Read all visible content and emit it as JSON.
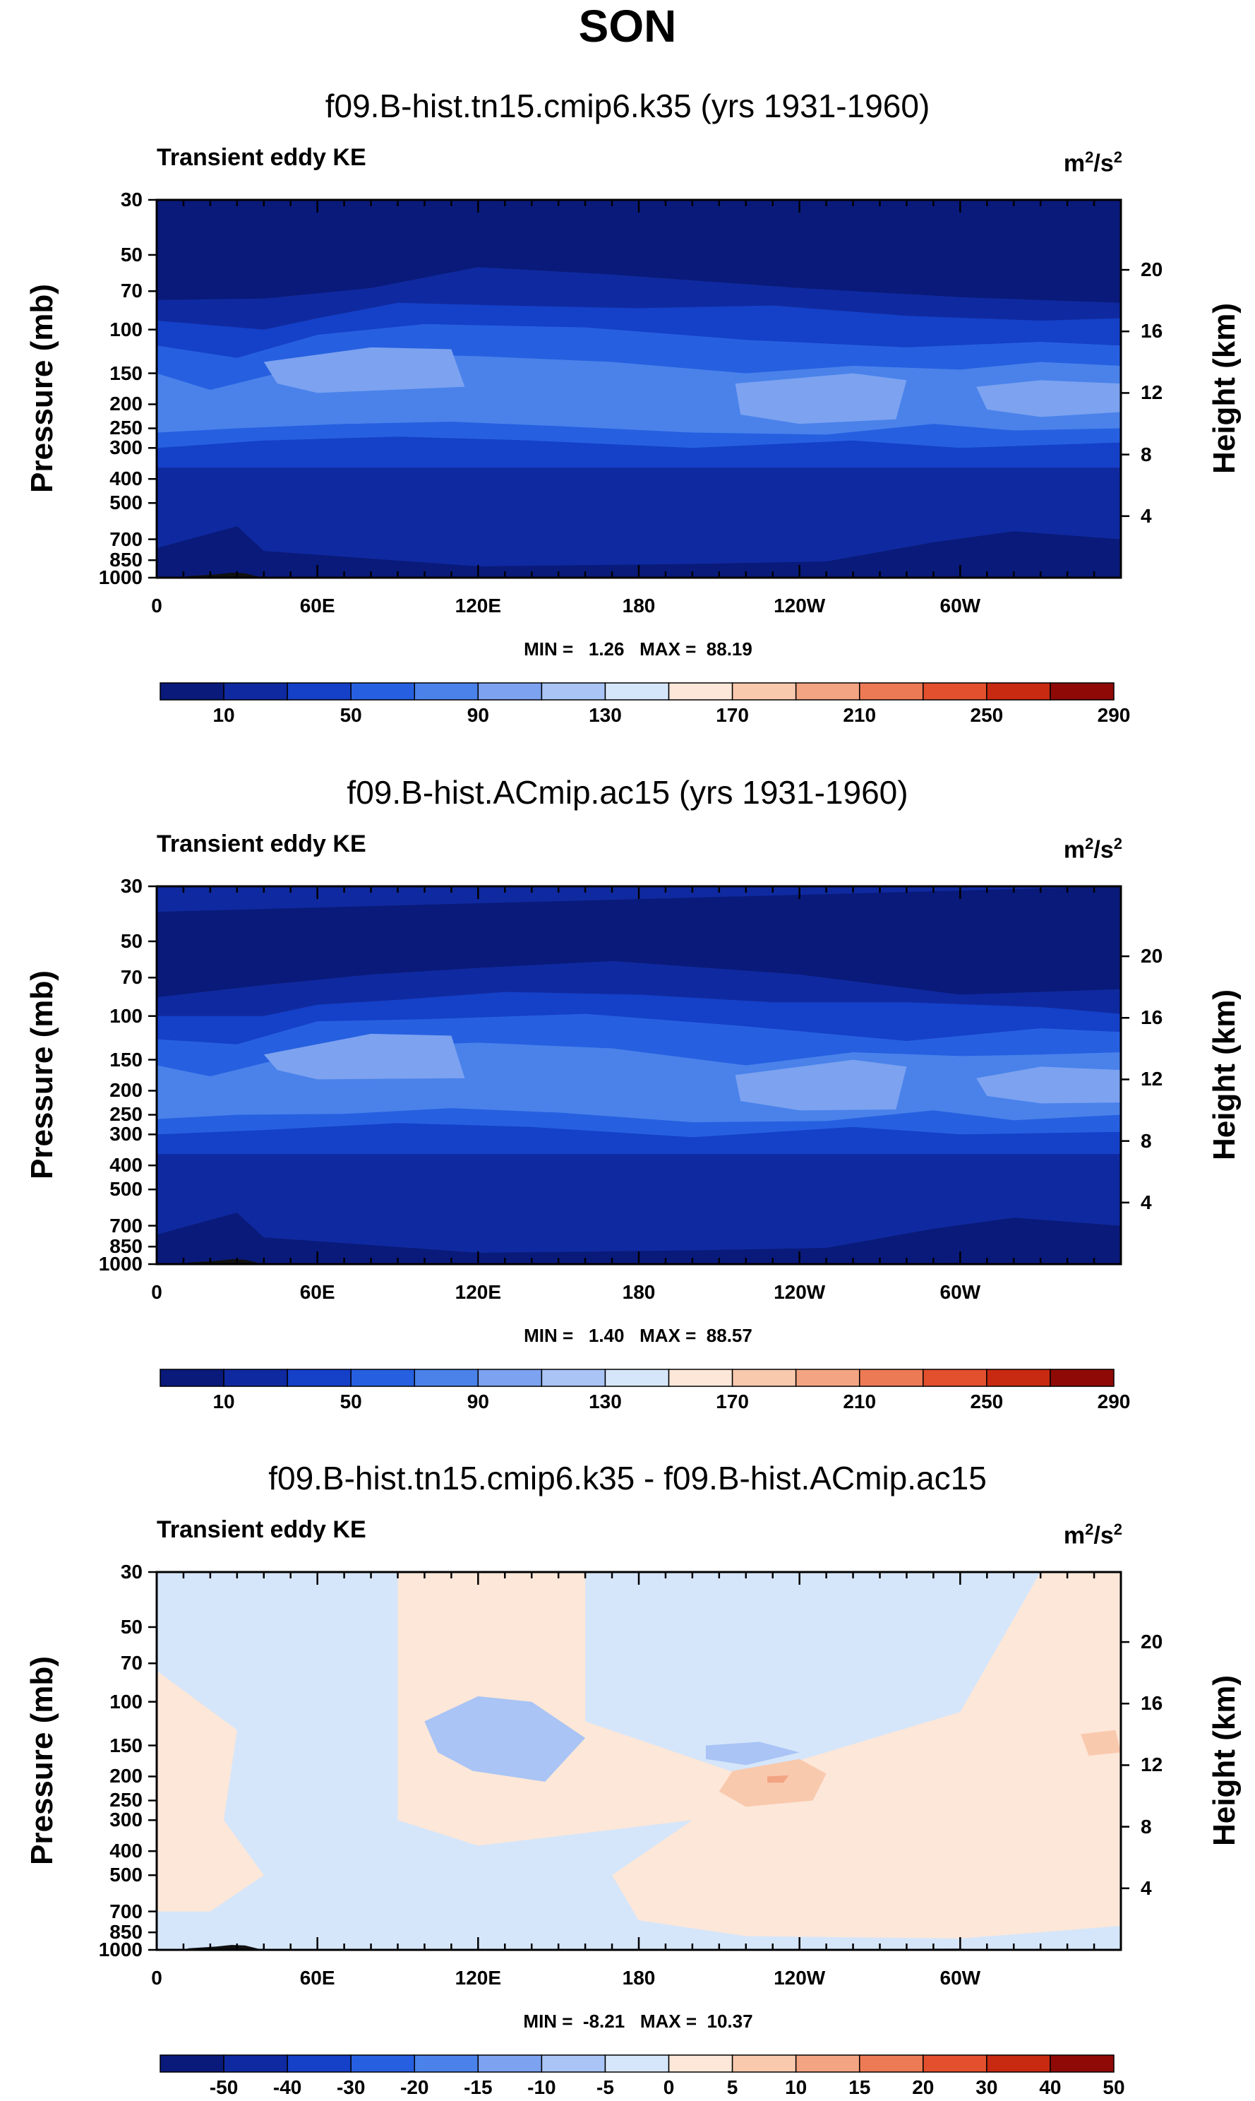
{
  "title": "SON",
  "colors": {
    "abs_scale": [
      "#0a1a7a",
      "#0f2aa0",
      "#1540c8",
      "#2660e0",
      "#4a82ea",
      "#7ca2f0",
      "#a9c4f5",
      "#d6e6fa",
      "#fde7d8",
      "#f9c9ae",
      "#f3a482",
      "#ec7a55",
      "#e3502e",
      "#c72a10",
      "#8f0a06"
    ],
    "diff_scale": [
      "#0a1a7a",
      "#0f2aa0",
      "#1540c8",
      "#2660e0",
      "#4a82ea",
      "#7ca2f0",
      "#a9c4f5",
      "#d6e6fa",
      "#fde7d8",
      "#f9c9ae",
      "#f3a482",
      "#ec7a55",
      "#e3502e",
      "#c72a10",
      "#8f0a06"
    ],
    "topography": "#111111"
  },
  "chart_data": [
    {
      "type": "heatmap",
      "title": "f09.B-hist.tn15.cmip6.k35 (yrs 1931-1960)",
      "variable": "Transient eddy KE",
      "units_base": "m",
      "units_exp1": "2",
      "units_mid": "/s",
      "units_exp2": "2",
      "xlabel": "",
      "ylabel": "Pressure (mb)",
      "ylabel_right": "Height (km)",
      "x_ticks": [
        "0",
        "60E",
        "120E",
        "180",
        "120W",
        "60W"
      ],
      "x_tick_lon": [
        0,
        60,
        120,
        180,
        240,
        300
      ],
      "xlim": [
        0,
        360
      ],
      "y_ticks": [
        "30",
        "50",
        "70",
        "100",
        "150",
        "200",
        "250",
        "300",
        "400",
        "500",
        "700",
        "850",
        "1000"
      ],
      "y_tick_p": [
        30,
        50,
        70,
        100,
        150,
        200,
        250,
        300,
        400,
        500,
        700,
        850,
        1000
      ],
      "ylim": [
        1000,
        30
      ],
      "height_ticks": [
        "20",
        "16",
        "12",
        "8",
        "4"
      ],
      "height_km": [
        20,
        16,
        12,
        8,
        4
      ],
      "min_text": "MIN =   1.26   MAX =  88.19",
      "min": 1.26,
      "max": 88.19,
      "colorbar_ticks": [
        "10",
        "50",
        "90",
        "130",
        "170",
        "210",
        "250",
        "290"
      ],
      "colorbar_levels": [
        10,
        30,
        50,
        70,
        90,
        110,
        130,
        150,
        170,
        190,
        210,
        230,
        250,
        270,
        290
      ]
    },
    {
      "type": "heatmap",
      "title": "f09.B-hist.ACmip.ac15 (yrs 1931-1960)",
      "variable": "Transient eddy KE",
      "units_base": "m",
      "units_exp1": "2",
      "units_mid": "/s",
      "units_exp2": "2",
      "xlabel": "",
      "ylabel": "Pressure (mb)",
      "ylabel_right": "Height (km)",
      "x_ticks": [
        "0",
        "60E",
        "120E",
        "180",
        "120W",
        "60W"
      ],
      "x_tick_lon": [
        0,
        60,
        120,
        180,
        240,
        300
      ],
      "xlim": [
        0,
        360
      ],
      "y_ticks": [
        "30",
        "50",
        "70",
        "100",
        "150",
        "200",
        "250",
        "300",
        "400",
        "500",
        "700",
        "850",
        "1000"
      ],
      "y_tick_p": [
        30,
        50,
        70,
        100,
        150,
        200,
        250,
        300,
        400,
        500,
        700,
        850,
        1000
      ],
      "ylim": [
        1000,
        30
      ],
      "height_ticks": [
        "20",
        "16",
        "12",
        "8",
        "4"
      ],
      "height_km": [
        20,
        16,
        12,
        8,
        4
      ],
      "min_text": "MIN =   1.40   MAX =  88.57",
      "min": 1.4,
      "max": 88.57,
      "colorbar_ticks": [
        "10",
        "50",
        "90",
        "130",
        "170",
        "210",
        "250",
        "290"
      ],
      "colorbar_levels": [
        10,
        30,
        50,
        70,
        90,
        110,
        130,
        150,
        170,
        190,
        210,
        230,
        250,
        270,
        290
      ]
    },
    {
      "type": "heatmap",
      "title": "f09.B-hist.tn15.cmip6.k35 - f09.B-hist.ACmip.ac15",
      "variable": "Transient eddy KE",
      "units_base": "m",
      "units_exp1": "2",
      "units_mid": "/s",
      "units_exp2": "2",
      "xlabel": "",
      "ylabel": "Pressure (mb)",
      "ylabel_right": "Height (km)",
      "x_ticks": [
        "0",
        "60E",
        "120E",
        "180",
        "120W",
        "60W"
      ],
      "x_tick_lon": [
        0,
        60,
        120,
        180,
        240,
        300
      ],
      "xlim": [
        0,
        360
      ],
      "y_ticks": [
        "30",
        "50",
        "70",
        "100",
        "150",
        "200",
        "250",
        "300",
        "400",
        "500",
        "700",
        "850",
        "1000"
      ],
      "y_tick_p": [
        30,
        50,
        70,
        100,
        150,
        200,
        250,
        300,
        400,
        500,
        700,
        850,
        1000
      ],
      "ylim": [
        1000,
        30
      ],
      "height_ticks": [
        "20",
        "16",
        "12",
        "8",
        "4"
      ],
      "height_km": [
        20,
        16,
        12,
        8,
        4
      ],
      "min_text": "MIN =  -8.21   MAX =  10.37",
      "min": -8.21,
      "max": 10.37,
      "colorbar_ticks": [
        "-50",
        "-40",
        "-30",
        "-20",
        "-15",
        "-10",
        "-5",
        "0",
        "5",
        "10",
        "15",
        "20",
        "30",
        "40",
        "50"
      ],
      "colorbar_levels": [
        -50,
        -40,
        -30,
        -20,
        -15,
        -10,
        -5,
        0,
        5,
        10,
        15,
        20,
        30,
        40,
        50
      ]
    }
  ]
}
